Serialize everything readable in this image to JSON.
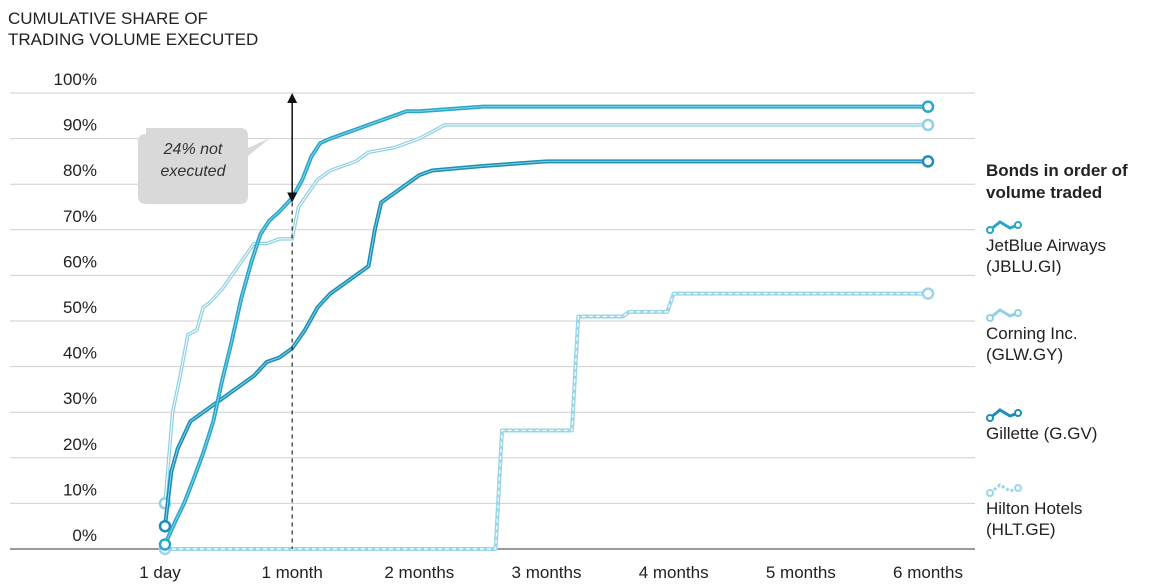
{
  "chart_data": {
    "type": "line",
    "ylabel": "CUMULATIVE SHARE OF TRADING VOLUME EXECUTED",
    "ylabel_lines": [
      "CUMULATIVE SHARE OF",
      "TRADING VOLUME EXECUTED"
    ],
    "ylim": [
      0,
      100
    ],
    "y_ticks": [
      0,
      10,
      20,
      30,
      40,
      50,
      60,
      70,
      80,
      90,
      100
    ],
    "y_tick_labels": [
      "0%",
      "10%",
      "20%",
      "30%",
      "40%",
      "50%",
      "60%",
      "70%",
      "80%",
      "90%",
      "100%"
    ],
    "xlim": [
      0,
      6
    ],
    "x_ticks": [
      0,
      1,
      2,
      3,
      4,
      5,
      6
    ],
    "x_tick_labels": [
      "1 day",
      "1 month",
      "2 months",
      "3 months",
      "4 months",
      "5 months",
      "6 months"
    ],
    "grid": true,
    "legend_title": "Bonds in order of volume traded",
    "legend_position": "right",
    "annotation": {
      "text_lines": [
        "24% not",
        "executed"
      ],
      "x": 1.0,
      "y_from": 76,
      "y_to": 100
    },
    "series": [
      {
        "name": "JetBlue Airways (JBLU.GI)",
        "label_lines": [
          "JetBlue Airways",
          "(JBLU.GI)"
        ],
        "color": "#2ba6c8",
        "style": "solid-thick",
        "x": [
          0.0,
          0.08,
          0.15,
          0.22,
          0.3,
          0.38,
          0.45,
          0.52,
          0.6,
          0.68,
          0.75,
          0.82,
          0.9,
          1.0,
          1.08,
          1.15,
          1.22,
          1.3,
          1.4,
          1.5,
          1.6,
          1.7,
          1.8,
          1.9,
          2.0,
          2.5,
          3.0,
          4.0,
          5.0,
          6.0
        ],
        "y": [
          1,
          6,
          10,
          15,
          21,
          28,
          37,
          45,
          55,
          63,
          69,
          72,
          74,
          77,
          81,
          86,
          89,
          90,
          91,
          92,
          93,
          94,
          95,
          96,
          96,
          97,
          97,
          97,
          97,
          97
        ]
      },
      {
        "name": "Corning Inc. (GLW.GY)",
        "label_lines": [
          "Corning Inc.",
          "(GLW.GY)"
        ],
        "color": "#8fd0e2",
        "style": "solid-light",
        "x": [
          0.0,
          0.06,
          0.12,
          0.18,
          0.25,
          0.3,
          0.35,
          0.45,
          0.55,
          0.6,
          0.65,
          0.7,
          0.8,
          0.9,
          1.0,
          1.05,
          1.1,
          1.2,
          1.3,
          1.4,
          1.5,
          1.6,
          1.8,
          2.0,
          2.2,
          2.5,
          3.0,
          4.0,
          5.0,
          6.0
        ],
        "y": [
          10,
          30,
          38,
          47,
          48,
          53,
          54,
          57,
          61,
          63,
          65,
          67,
          67,
          68,
          68,
          75,
          77,
          81,
          83,
          84,
          85,
          87,
          88,
          90,
          93,
          93,
          93,
          93,
          93,
          93
        ]
      },
      {
        "name": "Gillette (G.GV)",
        "label_lines": [
          "Gillette (G.GV)"
        ],
        "color": "#1d8fb3",
        "style": "solid-thick",
        "x": [
          0.0,
          0.05,
          0.1,
          0.2,
          0.3,
          0.4,
          0.5,
          0.6,
          0.7,
          0.8,
          0.9,
          1.0,
          1.1,
          1.2,
          1.3,
          1.4,
          1.5,
          1.6,
          1.65,
          1.7,
          1.8,
          1.9,
          2.0,
          2.1,
          2.5,
          3.0,
          4.0,
          5.0,
          6.0
        ],
        "y": [
          5,
          17,
          22,
          28,
          30,
          32,
          34,
          36,
          38,
          41,
          42,
          44,
          48,
          53,
          56,
          58,
          60,
          62,
          70,
          76,
          78,
          80,
          82,
          83,
          84,
          85,
          85,
          85,
          85
        ]
      },
      {
        "name": "Hilton Hotels (HLT.GE)",
        "label_lines": [
          "Hilton Hotels",
          "(HLT.GE)"
        ],
        "color": "#9ad6e6",
        "style": "dashed",
        "x": [
          0.0,
          2.6,
          2.65,
          3.2,
          3.25,
          3.6,
          3.65,
          3.95,
          4.0,
          6.0
        ],
        "y": [
          0,
          0,
          26,
          26,
          51,
          51,
          52,
          52,
          56,
          56
        ]
      }
    ]
  }
}
